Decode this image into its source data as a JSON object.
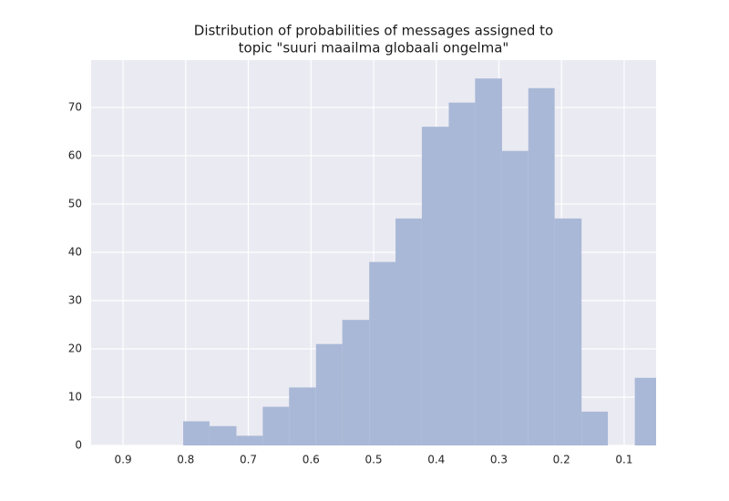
{
  "chart_data": {
    "type": "histogram",
    "title": [
      "Distribution of probabilities of messages assigned to",
      "topic \"suuri maailma globaali ongelma\""
    ],
    "bins": [
      0.041,
      0.083,
      0.126,
      0.168,
      0.211,
      0.253,
      0.295,
      0.338,
      0.38,
      0.423,
      0.465,
      0.507,
      0.55,
      0.592,
      0.635,
      0.677,
      0.719,
      0.762,
      0.804
    ],
    "values": [
      14,
      0,
      7,
      47,
      74,
      61,
      76,
      71,
      66,
      47,
      38,
      26,
      21,
      12,
      8,
      2,
      4,
      5
    ],
    "color": "#a9b8d6",
    "xlim": [
      0.951,
      0.049
    ],
    "xticks": [
      0.9,
      0.8,
      0.7,
      0.6,
      0.5,
      0.4,
      0.3,
      0.2,
      0.1
    ],
    "ylim": [
      0,
      79.8
    ],
    "yticks": [
      0,
      10,
      20,
      30,
      40,
      50,
      60,
      70
    ],
    "grid": true
  }
}
